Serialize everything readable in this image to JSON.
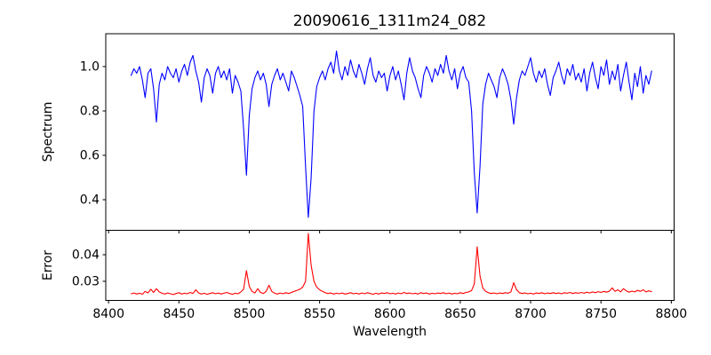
{
  "figure": {
    "title": "20090616_1311m24_082",
    "background_color": "#ffffff",
    "spine_color": "#000000"
  },
  "chart_data": [
    {
      "type": "line",
      "title": "20090616_1311m24_082",
      "ylabel": "Spectrum",
      "series_name": "spectrum",
      "color": "#0000ff",
      "legend": "none",
      "grid": false,
      "xlim": [
        8398,
        8802
      ],
      "ylim": [
        0.262,
        1.148
      ],
      "xticks": [
        8400,
        8450,
        8500,
        8550,
        8600,
        8650,
        8700,
        8750,
        8800
      ],
      "xtick_labels": [
        "8400",
        "8450",
        "8500",
        "8550",
        "8600",
        "8650",
        "8700",
        "8750",
        "8800"
      ],
      "yticks": [
        0.4,
        0.6,
        0.8,
        1.0
      ],
      "ytick_labels": [
        "0.4",
        "0.6",
        "0.8",
        "1.0"
      ],
      "absorption_features": [
        {
          "wavelength": 8434,
          "depth_value": 0.75
        },
        {
          "wavelength": 8498,
          "depth_value": 0.51
        },
        {
          "wavelength": 8514,
          "depth_value": 0.82
        },
        {
          "wavelength": 8542,
          "depth_value": 0.32
        },
        {
          "wavelength": 8662,
          "depth_value": 0.34
        },
        {
          "wavelength": 8688,
          "depth_value": 0.74
        }
      ],
      "x_start": 8416,
      "x_step": 2,
      "values": [
        0.96,
        0.99,
        0.97,
        1.0,
        0.94,
        0.86,
        0.97,
        0.99,
        0.9,
        0.75,
        0.92,
        0.97,
        0.94,
        1.0,
        0.97,
        0.95,
        0.99,
        0.93,
        0.98,
        1.01,
        0.96,
        1.02,
        1.05,
        0.98,
        0.93,
        0.84,
        0.95,
        0.99,
        0.96,
        0.88,
        0.97,
        1.0,
        0.95,
        0.98,
        0.94,
        0.99,
        0.88,
        0.96,
        0.93,
        0.89,
        0.72,
        0.51,
        0.78,
        0.9,
        0.95,
        0.98,
        0.94,
        0.97,
        0.92,
        0.82,
        0.92,
        0.96,
        0.99,
        0.94,
        0.97,
        0.93,
        0.89,
        0.98,
        0.95,
        0.91,
        0.87,
        0.82,
        0.55,
        0.32,
        0.5,
        0.8,
        0.91,
        0.95,
        0.98,
        0.94,
        0.99,
        1.02,
        0.97,
        1.07,
        0.98,
        0.94,
        1.0,
        0.96,
        1.03,
        0.98,
        0.95,
        1.01,
        0.97,
        0.92,
        0.99,
        1.04,
        0.96,
        0.93,
        0.98,
        0.95,
        0.97,
        0.89,
        0.96,
        1.0,
        0.94,
        0.98,
        0.92,
        0.85,
        0.97,
        1.04,
        0.98,
        0.95,
        0.9,
        0.86,
        0.96,
        1.0,
        0.97,
        0.93,
        0.99,
        0.96,
        1.01,
        0.97,
        1.05,
        0.98,
        0.94,
        0.99,
        0.9,
        0.97,
        1.0,
        0.95,
        0.93,
        0.8,
        0.52,
        0.34,
        0.55,
        0.83,
        0.92,
        0.97,
        0.94,
        0.91,
        0.86,
        0.95,
        0.99,
        0.96,
        0.92,
        0.85,
        0.74,
        0.86,
        0.94,
        0.98,
        0.96,
        1.0,
        1.04,
        0.97,
        0.93,
        0.98,
        0.95,
        0.99,
        0.92,
        0.87,
        0.95,
        0.98,
        1.02,
        0.96,
        0.92,
        0.99,
        0.96,
        1.01,
        0.94,
        0.97,
        0.93,
        0.99,
        0.89,
        0.97,
        1.02,
        0.95,
        0.9,
        1.0,
        0.96,
        1.03,
        0.92,
        0.98,
        0.94,
        1.01,
        0.89,
        0.96,
        1.02,
        0.93,
        0.85,
        0.97,
        0.91,
        1.0,
        0.88,
        0.96,
        0.92,
        0.98
      ]
    },
    {
      "type": "line",
      "xlabel": "Wavelength",
      "ylabel": "Error",
      "series_name": "error",
      "color": "#ff0000",
      "legend": "none",
      "grid": false,
      "xlim": [
        8398,
        8802
      ],
      "ylim": [
        0.0228,
        0.0492
      ],
      "xticks": [
        8400,
        8450,
        8500,
        8550,
        8600,
        8650,
        8700,
        8750,
        8800
      ],
      "xtick_labels": [
        "8400",
        "8450",
        "8500",
        "8550",
        "8600",
        "8650",
        "8700",
        "8750",
        "8800"
      ],
      "yticks": [
        0.03,
        0.04
      ],
      "ytick_labels": [
        "0.03",
        "0.04"
      ],
      "peak_features": [
        {
          "wavelength": 8498,
          "peak_value": 0.034
        },
        {
          "wavelength": 8542,
          "peak_value": 0.048
        },
        {
          "wavelength": 8662,
          "peak_value": 0.043
        },
        {
          "wavelength": 8688,
          "peak_value": 0.0295
        }
      ],
      "x_start": 8416,
      "x_step": 2,
      "values": [
        0.0253,
        0.0256,
        0.0252,
        0.0255,
        0.0251,
        0.0262,
        0.0256,
        0.027,
        0.0258,
        0.0272,
        0.026,
        0.0255,
        0.0252,
        0.0256,
        0.0253,
        0.025,
        0.0254,
        0.0257,
        0.0252,
        0.0255,
        0.0253,
        0.0258,
        0.0254,
        0.0268,
        0.0256,
        0.0252,
        0.0255,
        0.0251,
        0.0254,
        0.0257,
        0.0253,
        0.0256,
        0.0252,
        0.0255,
        0.0258,
        0.0254,
        0.0251,
        0.0255,
        0.0253,
        0.026,
        0.027,
        0.034,
        0.028,
        0.0262,
        0.0256,
        0.0272,
        0.0258,
        0.0254,
        0.0262,
        0.0285,
        0.0262,
        0.0255,
        0.0252,
        0.0256,
        0.0253,
        0.0257,
        0.0254,
        0.0258,
        0.0262,
        0.0266,
        0.027,
        0.0278,
        0.03,
        0.048,
        0.036,
        0.03,
        0.0278,
        0.0268,
        0.0262,
        0.0257,
        0.0254,
        0.0256,
        0.0252,
        0.0255,
        0.0253,
        0.0256,
        0.0252,
        0.0254,
        0.0257,
        0.0253,
        0.0255,
        0.0252,
        0.0256,
        0.0253,
        0.0257,
        0.0254,
        0.0251,
        0.0255,
        0.0252,
        0.0256,
        0.0254,
        0.0257,
        0.0253,
        0.0255,
        0.0252,
        0.0256,
        0.0253,
        0.0258,
        0.0254,
        0.0256,
        0.0253,
        0.0255,
        0.0252,
        0.0257,
        0.0254,
        0.0256,
        0.0252,
        0.0255,
        0.0253,
        0.0256,
        0.0254,
        0.0257,
        0.0253,
        0.0256,
        0.0252,
        0.0255,
        0.0253,
        0.0257,
        0.0254,
        0.0258,
        0.026,
        0.0265,
        0.029,
        0.043,
        0.032,
        0.0275,
        0.0262,
        0.0257,
        0.0254,
        0.0256,
        0.0253,
        0.0256,
        0.0254,
        0.0257,
        0.0255,
        0.026,
        0.0295,
        0.0268,
        0.0257,
        0.0254,
        0.0256,
        0.0253,
        0.0255,
        0.0252,
        0.0256,
        0.0254,
        0.0257,
        0.0253,
        0.0256,
        0.0254,
        0.0257,
        0.0254,
        0.0256,
        0.0253,
        0.0257,
        0.0255,
        0.0258,
        0.0254,
        0.0257,
        0.0255,
        0.0258,
        0.0255,
        0.0259,
        0.0256,
        0.026,
        0.0257,
        0.0261,
        0.0258,
        0.0262,
        0.0259,
        0.0263,
        0.0275,
        0.0262,
        0.0268,
        0.026,
        0.0272,
        0.0264,
        0.0259,
        0.0263,
        0.026,
        0.0266,
        0.0262,
        0.0268,
        0.026,
        0.0264,
        0.0261
      ]
    }
  ],
  "axis_labels": {
    "x": "Wavelength",
    "y_top": "Spectrum",
    "y_bottom": "Error"
  }
}
